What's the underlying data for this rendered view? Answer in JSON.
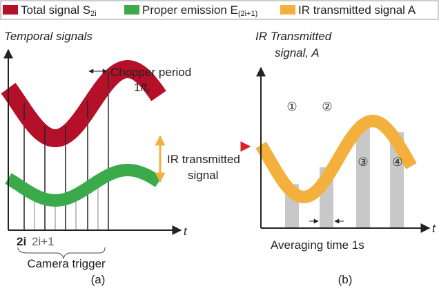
{
  "legend": [
    {
      "label": "Total signal S",
      "sub": "2i"
    },
    {
      "label": "Proper emission E",
      "sub": "(2i+1)"
    },
    {
      "label": "IR transmitted signal A"
    }
  ],
  "left": {
    "title": "Temporal signals",
    "chopper": {
      "line1": "Chopper period",
      "line2": "1/f",
      "sub": "c"
    },
    "ir": {
      "line1": "IR transmitted",
      "line2": "signal"
    },
    "axis": "t",
    "tick_bold": "2i",
    "tick": "2i+1",
    "trigger": "Camera trigger",
    "caption": "(a)"
  },
  "right": {
    "title1": "IR Transmitted",
    "title2": "signal, A",
    "markers": [
      "①",
      "②",
      "③",
      "④"
    ],
    "axis": "t",
    "averaging": "Averaging time 1s",
    "caption": "(b)"
  }
}
